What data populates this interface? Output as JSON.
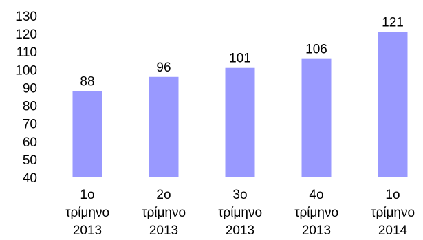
{
  "chart_data": {
    "type": "bar",
    "categories": [
      [
        "1ο",
        "τρίμηνο",
        "2013"
      ],
      [
        "2ο",
        "τρίμηνο",
        "2013"
      ],
      [
        "3ο",
        "τρίμηνο",
        "2013"
      ],
      [
        "4ο",
        "τρίμηνο",
        "2013"
      ],
      [
        "1ο",
        "τρίμηνο",
        "2014"
      ]
    ],
    "values": [
      88,
      96,
      101,
      106,
      121
    ],
    "data_labels": [
      "88",
      "96",
      "101",
      "106",
      "121"
    ],
    "ylim": [
      40,
      130
    ],
    "yticks": [
      40,
      50,
      60,
      70,
      80,
      90,
      100,
      110,
      120,
      130
    ],
    "ytick_labels": [
      "40",
      "50",
      "60",
      "70",
      "80",
      "90",
      "100",
      "110",
      "120",
      "130"
    ],
    "grid": false,
    "legend": "none",
    "bar_color": "#9999ff"
  }
}
